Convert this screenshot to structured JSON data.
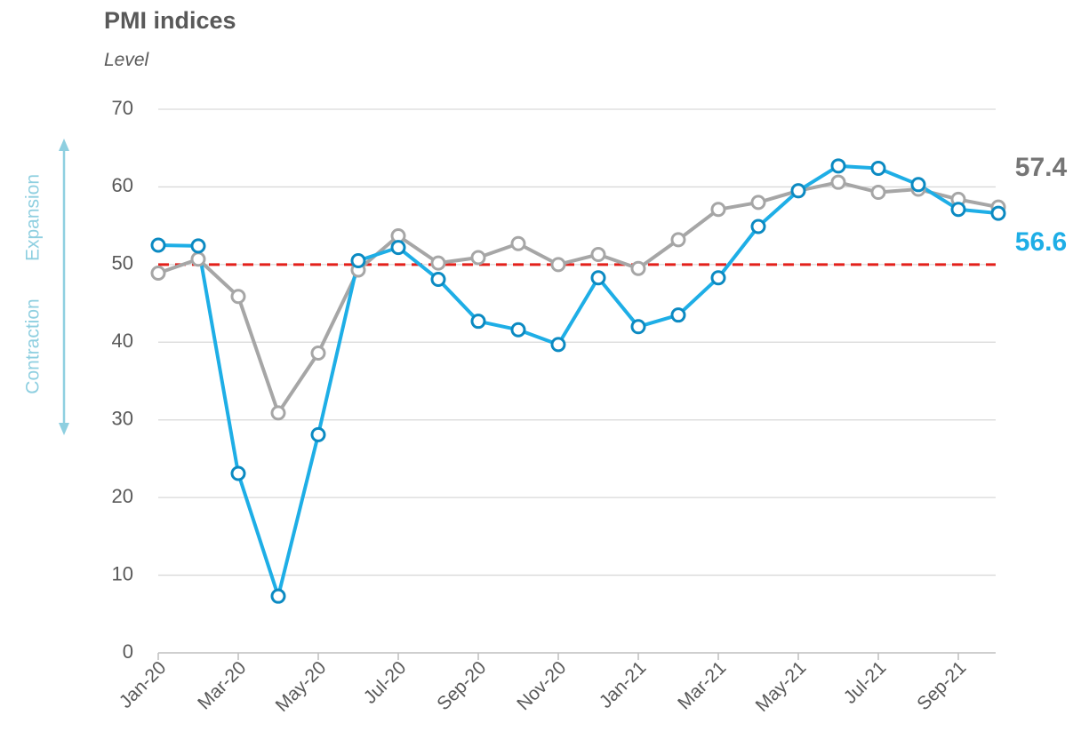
{
  "chart_data": {
    "type": "line",
    "title": "PMI indices",
    "subtitle": "Level",
    "annotations": {
      "upper": "Expansion",
      "lower": "Contraction"
    },
    "categories": [
      "Jan-20",
      null,
      "Mar-20",
      null,
      "May-20",
      null,
      "Jul-20",
      null,
      "Sep-20",
      null,
      "Nov-20",
      null,
      "Jan-21",
      null,
      "Mar-21",
      null,
      "May-21",
      null,
      "Jul-21",
      null,
      "Sep-21",
      null
    ],
    "series": [
      {
        "color": "#1eaee6",
        "values": [
          52.5,
          52.4,
          23.1,
          7.3,
          28.1,
          50.5,
          52.2,
          48.1,
          42.7,
          41.6,
          39.7,
          48.3,
          42.0,
          43.5,
          48.3,
          54.9,
          59.5,
          62.7,
          62.4,
          60.3,
          57.1,
          56.6
        ]
      },
      {
        "color": "#a6a6a6",
        "values": [
          48.9,
          50.7,
          45.9,
          30.9,
          38.6,
          49.3,
          53.7,
          50.2,
          50.9,
          52.7,
          50.0,
          51.3,
          49.5,
          53.2,
          57.1,
          58.0,
          59.5,
          60.6,
          59.3,
          59.7,
          58.4,
          57.4
        ]
      }
    ],
    "reference_line": {
      "value": 50,
      "color": "#e3201b"
    },
    "ylim": [
      0,
      70
    ],
    "yticks": [
      0,
      10,
      20,
      30,
      40,
      50,
      60,
      70
    ],
    "grid": true
  }
}
